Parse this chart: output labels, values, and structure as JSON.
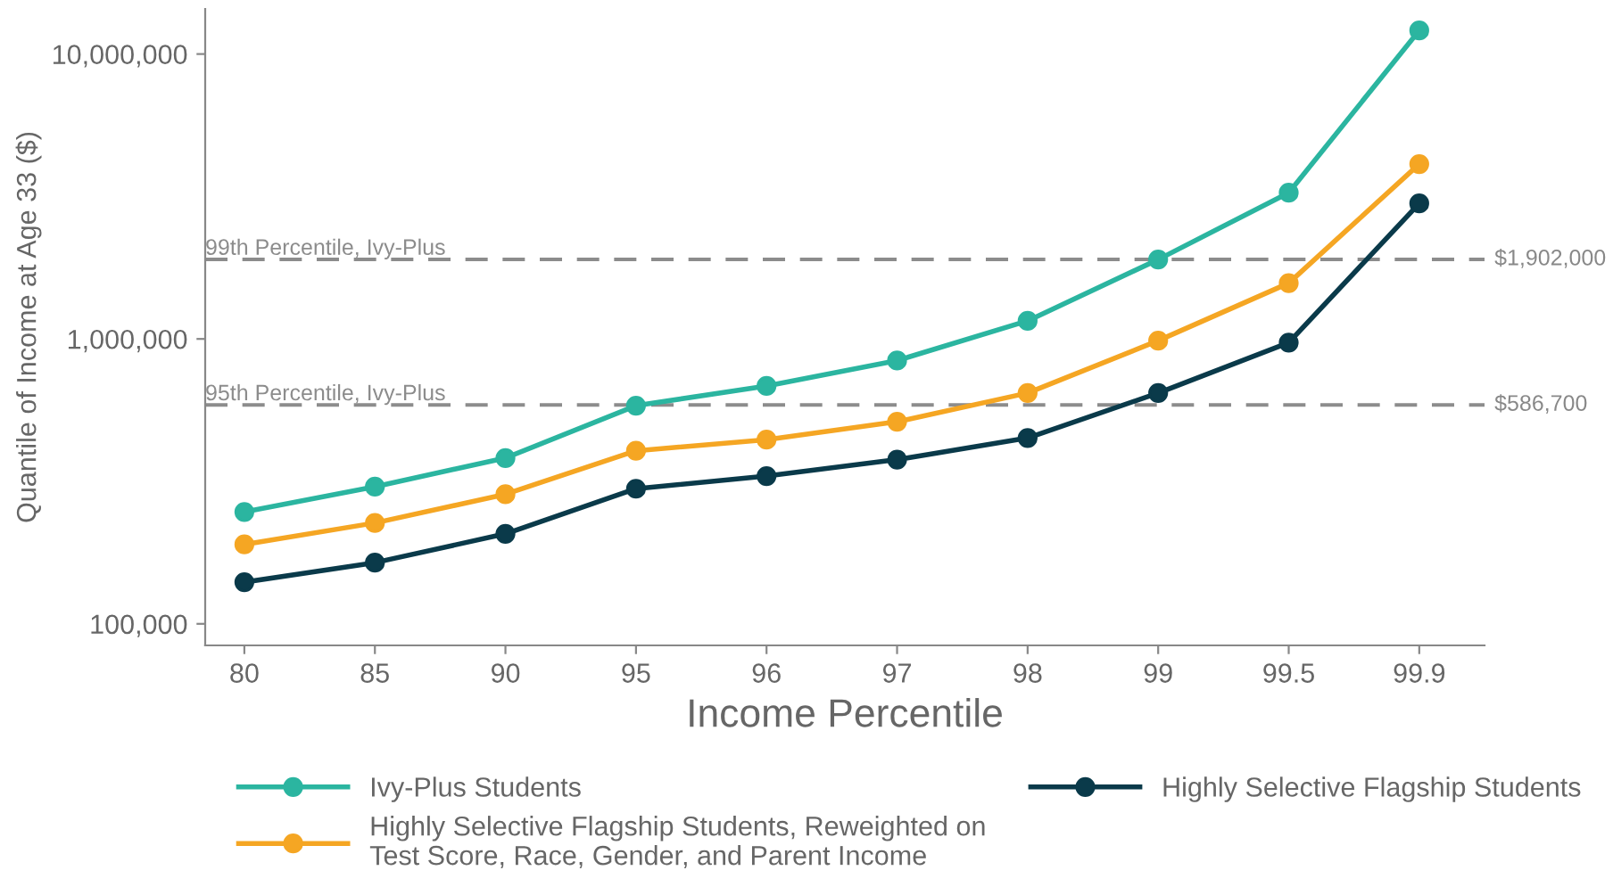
{
  "chart_data": {
    "type": "line",
    "xlabel": "Income Percentile",
    "ylabel": "Quantile of Income at Age 33 ($)",
    "categories": [
      "80",
      "85",
      "90",
      "95",
      "96",
      "97",
      "98",
      "99",
      "99.5",
      "99.9"
    ],
    "series": [
      {
        "name": "Ivy-Plus Students",
        "color": "#2bb5a0",
        "values": [
          247000,
          303000,
          382000,
          583000,
          684000,
          840000,
          1157000,
          1900000,
          3260000,
          12100000
        ]
      },
      {
        "name": "Highly Selective Flagship Students",
        "color": "#0a3a4a",
        "values": [
          140000,
          164000,
          207000,
          298000,
          330000,
          377000,
          449000,
          646000,
          971000,
          2990000
        ]
      },
      {
        "name": "Highly Selective Flagship Students, Reweighted on\nTest Score, Race, Gender, and Parent Income",
        "color": "#f5a623",
        "values": [
          190000,
          226000,
          285000,
          405000,
          443000,
          512000,
          646000,
          986000,
          1570000,
          4110000
        ]
      }
    ],
    "log": "y",
    "ylim": [
      84000,
      14400000
    ],
    "yticks": [
      {
        "value": 100000,
        "label": "100,000"
      },
      {
        "value": 1000000,
        "label": "1,000,000"
      },
      {
        "value": 10000000,
        "label": "10,000,000"
      }
    ],
    "ref_lines": [
      {
        "axis": "y",
        "value": 1902000,
        "label": "99th Percentile, Ivy-Plus",
        "color": "#8c8c8c",
        "line_style": "dashed"
      },
      {
        "axis": "y",
        "value": 586700,
        "label": "95th Percentile, Ivy-Plus",
        "color": "#8c8c8c",
        "line_style": "dashed"
      }
    ],
    "annotations": [
      "$1,902,000",
      "$586,700"
    ],
    "marker": "circle",
    "line_style": "solid",
    "grid": false,
    "legend": "bottom"
  }
}
